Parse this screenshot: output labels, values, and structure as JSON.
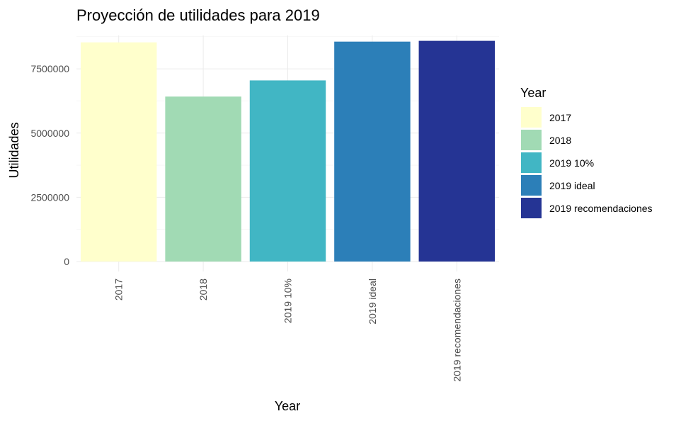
{
  "chart_data": {
    "type": "bar",
    "title": "Proyección de utilidades para 2019",
    "xlabel": "Year",
    "ylabel": "Utilidades",
    "categories": [
      "2017",
      "2018",
      "2019 10%",
      "2019 ideal",
      "2019 recomendaciones"
    ],
    "values": [
      8530000,
      6420000,
      7050000,
      8560000,
      8590000
    ],
    "colors": [
      "#FFFFCC",
      "#A1DAB4",
      "#41B6C4",
      "#2C7FB8",
      "#253494"
    ],
    "ylim": [
      0,
      8800000
    ],
    "yticks": [
      0,
      2500000,
      5000000,
      7500000
    ],
    "ytick_labels": [
      "0",
      "2500000",
      "5000000",
      "7500000"
    ],
    "grid": true,
    "legend": {
      "title": "Year",
      "placement": "right",
      "entries": [
        "2017",
        "2018",
        "2019 10%",
        "2019 ideal",
        "2019 recomendaciones"
      ]
    }
  }
}
